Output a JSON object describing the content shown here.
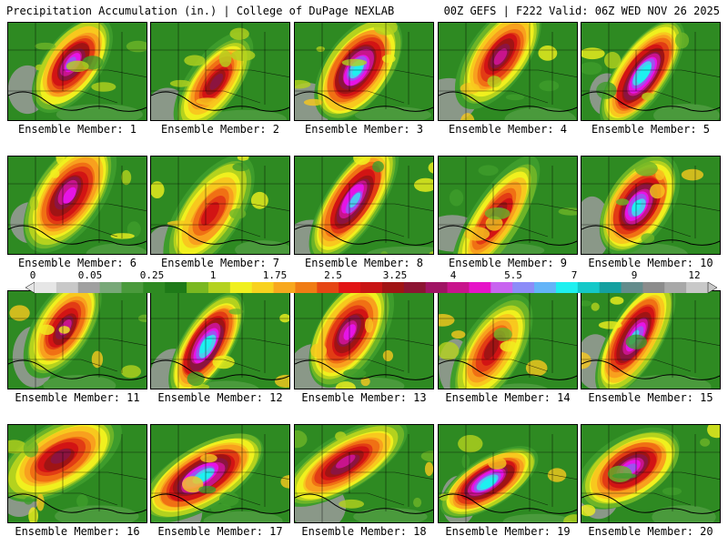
{
  "header": {
    "left_title": "Precipitation Accumulation (in.) | College of DuPage NEXLAB",
    "right_title": "00Z GEFS | F222 Valid: 06Z WED NOV 26 2025"
  },
  "panels": [
    {
      "label": "Ensemble Member: 1"
    },
    {
      "label": "Ensemble Member: 2"
    },
    {
      "label": "Ensemble Member: 3"
    },
    {
      "label": "Ensemble Member: 4"
    },
    {
      "label": "Ensemble Member: 5"
    },
    {
      "label": "Ensemble Member: 6"
    },
    {
      "label": "Ensemble Member: 7"
    },
    {
      "label": "Ensemble Member: 8"
    },
    {
      "label": "Ensemble Member: 9"
    },
    {
      "label": "Ensemble Member: 10"
    },
    {
      "label": "Ensemble Member: 11"
    },
    {
      "label": "Ensemble Member: 12"
    },
    {
      "label": "Ensemble Member: 13"
    },
    {
      "label": "Ensemble Member: 14"
    },
    {
      "label": "Ensemble Member: 15"
    },
    {
      "label": "Ensemble Member: 16"
    },
    {
      "label": "Ensemble Member: 17"
    },
    {
      "label": "Ensemble Member: 18"
    },
    {
      "label": "Ensemble Member: 19"
    },
    {
      "label": "Ensemble Member: 20"
    }
  ],
  "colorbar": {
    "tick_labels": [
      "0",
      "0.05",
      "0.25",
      "1",
      "1.75",
      "2.5",
      "3.25",
      "4",
      "5.5",
      "7",
      "9",
      "12"
    ],
    "colors": [
      "#e6e6e6",
      "#c8c8c8",
      "#a0a0a0",
      "#78a878",
      "#4a9a3c",
      "#2e8a22",
      "#1e7a18",
      "#7ab820",
      "#b4d21e",
      "#f0f01e",
      "#f8d21e",
      "#f8a81e",
      "#f07c14",
      "#e64614",
      "#e21414",
      "#c81414",
      "#a01414",
      "#8c1432",
      "#a01464",
      "#c8148c",
      "#e614c8",
      "#c864f0",
      "#8c8cf8",
      "#64b4f8",
      "#1ef0f0",
      "#14c8c8",
      "#14a0a0",
      "#648c8c",
      "#8c8c8c",
      "#a8a8a8",
      "#c8c8c8"
    ],
    "colors_named": "precipitation-scale"
  }
}
